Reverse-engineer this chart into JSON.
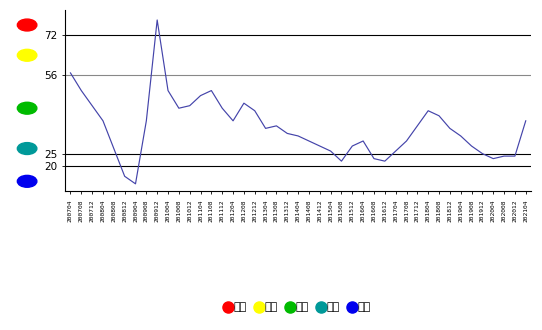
{
  "title": "",
  "bg_color": "#ffffff",
  "line_color": "#4444aa",
  "threshold_lines": [
    72,
    56,
    25,
    20
  ],
  "threshold_line_colors": [
    "#000000",
    "#888888",
    "#000000",
    "#000000"
  ],
  "ylim": [
    10,
    82
  ],
  "yticks": [
    20,
    25,
    56,
    72
  ],
  "zone_dots": [
    {
      "y": 76,
      "color": "#ff0000"
    },
    {
      "y": 64,
      "color": "#ffff00"
    },
    {
      "y": 43,
      "color": "#00bb00"
    },
    {
      "y": 27,
      "color": "#009999"
    },
    {
      "y": 14,
      "color": "#0000ee"
    }
  ],
  "legend_items": [
    {
      "label": "过热",
      "color": "#ff0000"
    },
    {
      "label": "偏热",
      "color": "#ffff00"
    },
    {
      "label": "正常",
      "color": "#00bb00"
    },
    {
      "label": "偏冷",
      "color": "#009999"
    },
    {
      "label": "过冷",
      "color": "#0000ee"
    }
  ],
  "x_labels": [
    "200704",
    "200708",
    "200712",
    "200804",
    "200808",
    "200812",
    "200904",
    "200908",
    "200912",
    "201004",
    "201008",
    "201012",
    "201104",
    "201108",
    "201112",
    "201204",
    "201208",
    "201212",
    "201304",
    "201308",
    "201312",
    "201404",
    "201408",
    "201412",
    "201504",
    "201508",
    "201512",
    "201604",
    "201608",
    "201612",
    "201704",
    "201708",
    "201712",
    "201804",
    "201808",
    "201812",
    "201904",
    "201908",
    "201912",
    "202004",
    "202008",
    "202012",
    "202104"
  ],
  "y_values": [
    57,
    50,
    44,
    38,
    27,
    16,
    13,
    38,
    78,
    50,
    43,
    44,
    48,
    50,
    43,
    38,
    45,
    42,
    35,
    36,
    33,
    32,
    30,
    28,
    26,
    22,
    28,
    30,
    23,
    22,
    26,
    30,
    36,
    42,
    40,
    35,
    32,
    28,
    25,
    23,
    24,
    24,
    38
  ]
}
